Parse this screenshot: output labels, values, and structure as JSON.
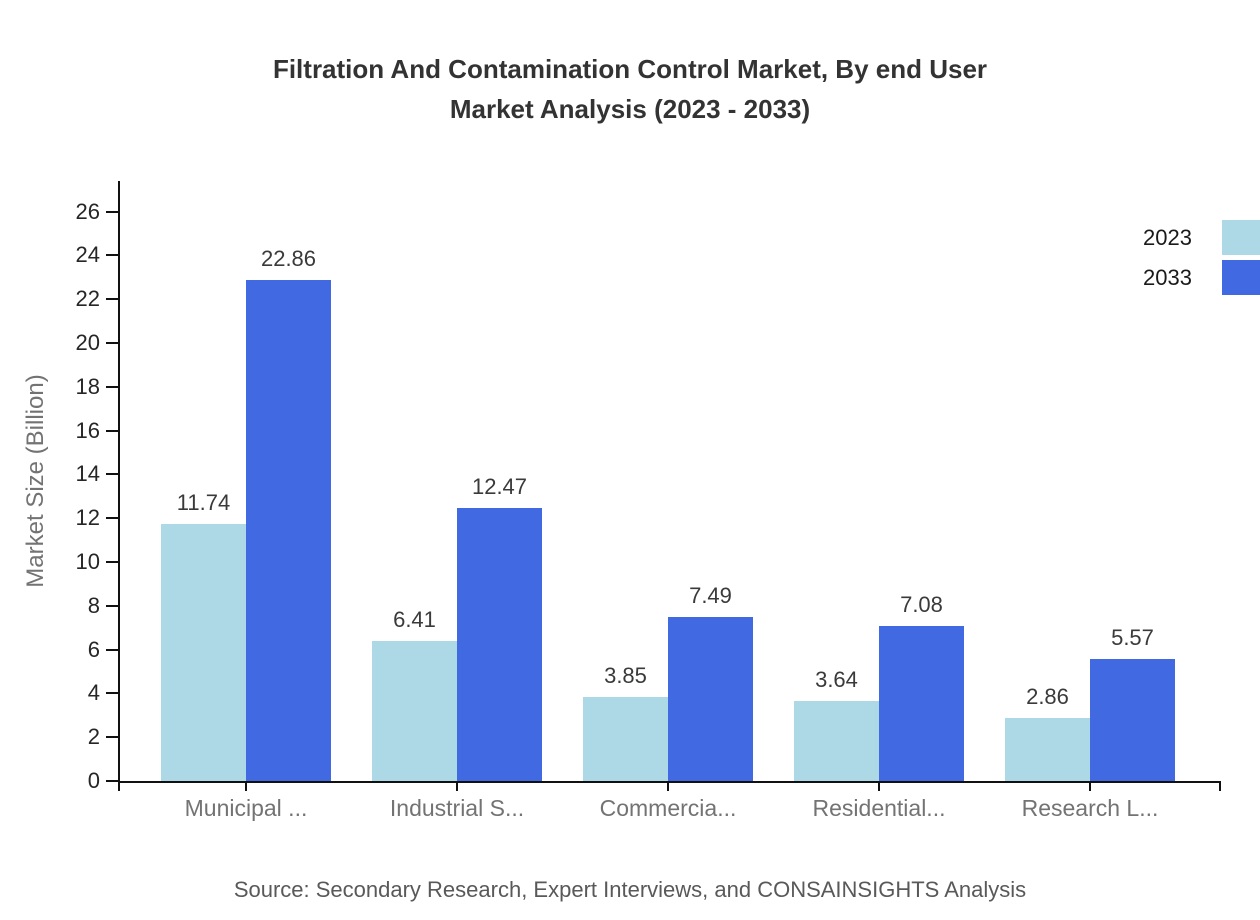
{
  "title": {
    "line1": "Filtration And Contamination Control Market, By end User",
    "line2": "Market Analysis (2023 - 2033)"
  },
  "source": "Source: Secondary Research, Expert Interviews, and CONSAINSIGHTS Analysis",
  "colors": {
    "series_2023": "#ADD8E6",
    "series_2033": "#4169E1",
    "axis": "#111111",
    "title_text": "#333333",
    "tick_label_text": "#262626",
    "category_label_text": "#737373",
    "value_label_text": "#3a3a3a",
    "source_text": "#595959",
    "legend_text": "#1a1a1a",
    "background": "#ffffff"
  },
  "chart_data": {
    "type": "bar",
    "categories": [
      "Municipal ...",
      "Industrial S...",
      "Commercia...",
      "Residential...",
      "Research L..."
    ],
    "series": [
      {
        "name": "2023",
        "color": "#ADD8E6",
        "values": [
          11.74,
          6.41,
          3.85,
          3.64,
          2.86
        ]
      },
      {
        "name": "2033",
        "color": "#4169E1",
        "values": [
          22.86,
          12.47,
          7.49,
          7.08,
          5.57
        ]
      }
    ],
    "title": "Filtration And Contamination Control Market, By end User Market Analysis (2023 - 2033)",
    "xlabel": "",
    "ylabel": "Market Size (Billion)",
    "ylim": [
      0,
      27.4
    ],
    "yticks": [
      0,
      2,
      4,
      6,
      8,
      10,
      12,
      14,
      16,
      18,
      20,
      22,
      24,
      26
    ],
    "grid": false,
    "legend_position": "top-right",
    "value_labels_shown": true
  }
}
